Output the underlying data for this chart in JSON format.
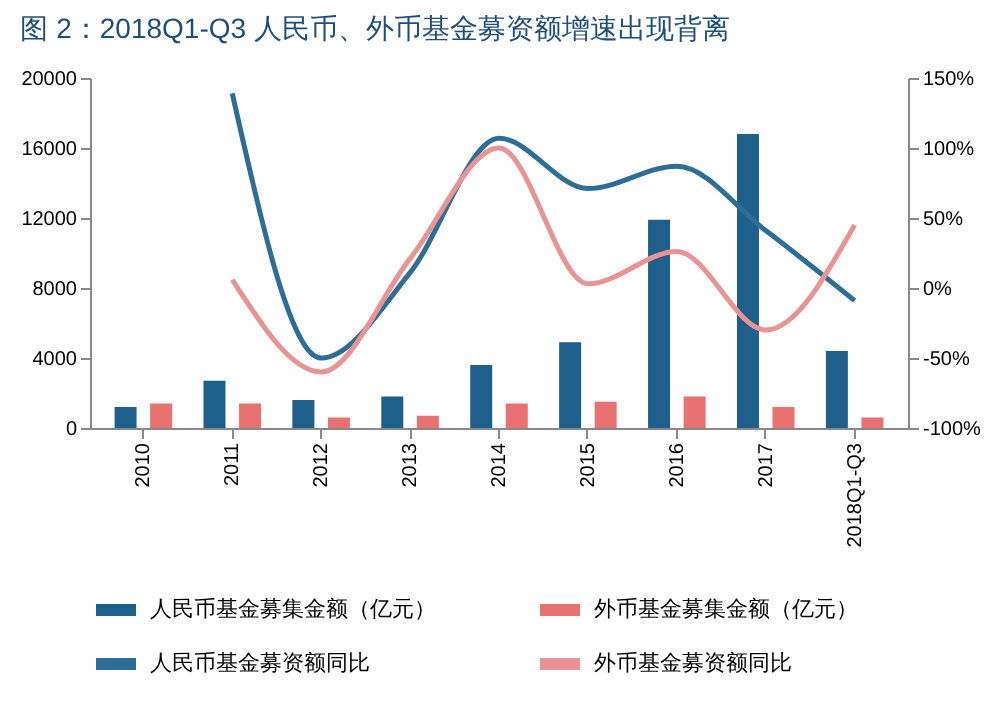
{
  "chart_data": {
    "type": "bar",
    "title": "图 2：2018Q1-Q3 人民币、外币基金募资额增速出现背离",
    "categories": [
      "2010",
      "2011",
      "2012",
      "2013",
      "2014",
      "2015",
      "2016",
      "2017",
      "2018Q1-Q3"
    ],
    "series": [
      {
        "name": "人民币基金募集金额（亿元）",
        "color": "#1f5f8b",
        "values": [
          1200,
          2700,
          1600,
          1800,
          3600,
          4900,
          11900,
          16800,
          4400
        ]
      },
      {
        "name": "外币基金募集金额（亿元）",
        "color": "#e87272",
        "values": [
          1400,
          1400,
          600,
          700,
          1400,
          1500,
          1800,
          1200,
          600
        ]
      },
      {
        "name": "人民币基金募资额同比",
        "type": "line",
        "axis": "y2",
        "color": "#2e6e96",
        "values": [
          null,
          139,
          -50,
          11,
          107,
          71,
          87,
          41,
          -9
        ]
      },
      {
        "name": "外币基金募资额同比",
        "type": "line",
        "axis": "y2",
        "color": "#e89494",
        "values": [
          null,
          6,
          -60,
          21,
          100,
          3,
          26,
          -30,
          45
        ]
      }
    ],
    "ylim": [
      0,
      20000
    ],
    "yticks": [
      0,
      4000,
      8000,
      12000,
      16000,
      20000
    ],
    "y2lim": [
      -100,
      150
    ],
    "y2ticks": [
      {
        "value": -100,
        "label": "-100%"
      },
      {
        "value": -50,
        "label": "-50%"
      },
      {
        "value": 0,
        "label": "0%"
      },
      {
        "value": 50,
        "label": "50%"
      },
      {
        "value": 100,
        "label": "100%"
      },
      {
        "value": 150,
        "label": "150%"
      }
    ],
    "grid": false,
    "legend": "bottom"
  }
}
